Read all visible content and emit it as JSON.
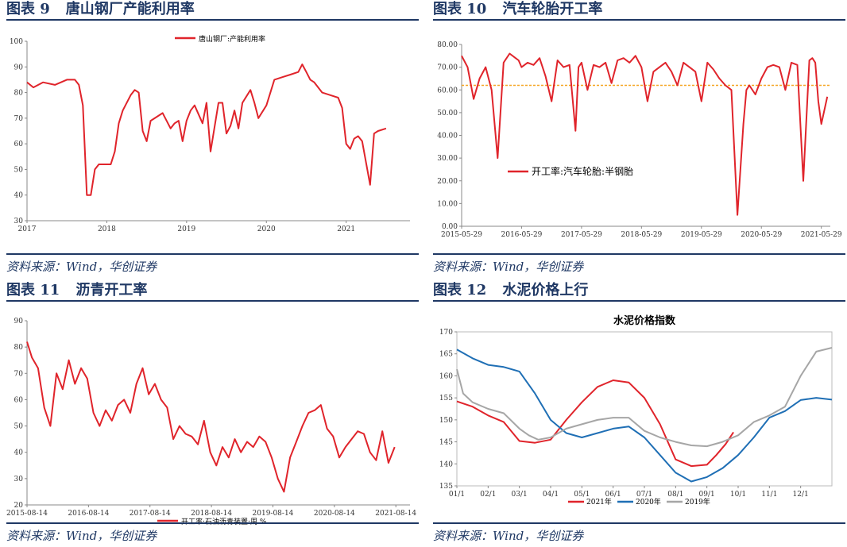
{
  "panels": [
    {
      "fig": "图表 9",
      "title": "唐山钢厂产能利用率",
      "source": "资料来源：Wind，华创证券"
    },
    {
      "fig": "图表 10",
      "title": "汽车轮胎开工率",
      "source": "资料来源：Wind，华创证券"
    },
    {
      "fig": "图表 11",
      "title": "沥青开工率",
      "source": "资料来源：Wind，华创证券"
    },
    {
      "fig": "图表 12",
      "title": "水泥价格上行",
      "source": "资料来源：Wind，华创证券"
    }
  ],
  "chart_data": [
    {
      "type": "line",
      "title": "",
      "ylim": [
        30,
        100
      ],
      "yticks": [
        "30",
        "40",
        "50",
        "60",
        "70",
        "80",
        "90",
        "100"
      ],
      "xticks": [
        "2017",
        "2018",
        "2019",
        "2020",
        "2021"
      ],
      "legend": "top-right",
      "grid": false,
      "color": "#e0242b",
      "series": [
        {
          "name": "唐山钢厂:产能利用率",
          "x": [
            2017.0,
            2017.08,
            2017.2,
            2017.35,
            2017.5,
            2017.6,
            2017.65,
            2017.7,
            2017.75,
            2017.8,
            2017.85,
            2017.9,
            2017.95,
            2018.0,
            2018.05,
            2018.1,
            2018.15,
            2018.2,
            2018.3,
            2018.35,
            2018.4,
            2018.45,
            2018.5,
            2018.55,
            2018.6,
            2018.7,
            2018.8,
            2018.85,
            2018.9,
            2018.95,
            2019.0,
            2019.05,
            2019.1,
            2019.2,
            2019.25,
            2019.3,
            2019.4,
            2019.45,
            2019.5,
            2019.55,
            2019.6,
            2019.65,
            2019.7,
            2019.8,
            2019.85,
            2019.9,
            2020.0,
            2020.1,
            2020.2,
            2020.3,
            2020.4,
            2020.45,
            2020.5,
            2020.55,
            2020.6,
            2020.7,
            2020.8,
            2020.9,
            2020.95,
            2021.0,
            2021.05,
            2021.1,
            2021.15,
            2021.2,
            2021.3,
            2021.35,
            2021.4,
            2021.5
          ],
          "y": [
            84,
            82,
            84,
            83,
            85,
            85,
            83,
            75,
            40,
            40,
            50,
            52,
            52,
            52,
            52,
            57,
            68,
            73,
            79,
            81,
            80,
            65,
            61,
            69,
            70,
            72,
            66,
            68,
            69,
            61,
            69,
            73,
            75,
            68,
            76,
            57,
            76,
            76,
            64,
            67,
            73,
            66,
            76,
            81,
            76,
            70,
            75,
            85,
            86,
            87,
            88,
            91,
            88,
            85,
            84,
            80,
            79,
            78,
            74,
            60,
            58,
            62,
            63,
            61,
            44,
            64,
            65,
            66
          ]
        }
      ]
    },
    {
      "type": "line",
      "title": "",
      "ylim": [
        0,
        80
      ],
      "yticks": [
        "0.00",
        "10.00",
        "20.00",
        "30.00",
        "40.00",
        "50.00",
        "60.00",
        "70.00",
        "80.00"
      ],
      "xticks": [
        "2015-05-29",
        "2016-05-29",
        "2017-05-29",
        "2018-05-29",
        "2019-05-29",
        "2020-05-29",
        "2021-05-29"
      ],
      "legend": "bottom-left",
      "grid": false,
      "color": "#e0242b",
      "refline": 62,
      "series": [
        {
          "name": "开工率:汽车轮胎:半钢胎",
          "x": [
            2015.4,
            2015.5,
            2015.6,
            2015.7,
            2015.8,
            2015.9,
            2016.0,
            2016.1,
            2016.2,
            2016.3,
            2016.35,
            2016.4,
            2016.5,
            2016.6,
            2016.7,
            2016.8,
            2016.9,
            2017.0,
            2017.1,
            2017.2,
            2017.3,
            2017.35,
            2017.4,
            2017.5,
            2017.6,
            2017.7,
            2017.8,
            2017.9,
            2018.0,
            2018.1,
            2018.2,
            2018.3,
            2018.4,
            2018.5,
            2018.6,
            2018.7,
            2018.8,
            2018.9,
            2019.0,
            2019.1,
            2019.2,
            2019.3,
            2019.4,
            2019.5,
            2019.6,
            2019.7,
            2019.8,
            2019.9,
            2020.0,
            2020.1,
            2020.15,
            2020.2,
            2020.3,
            2020.4,
            2020.5,
            2020.6,
            2020.7,
            2020.8,
            2020.9,
            2021.0,
            2021.1,
            2021.2,
            2021.25,
            2021.3,
            2021.35,
            2021.4,
            2021.5
          ],
          "y": [
            75,
            70,
            56,
            65,
            70,
            60,
            30,
            72,
            76,
            74,
            73,
            70,
            72,
            71,
            74,
            66,
            55,
            73,
            70,
            71,
            42,
            70,
            72,
            60,
            71,
            70,
            72,
            63,
            73,
            74,
            72,
            75,
            70,
            55,
            68,
            70,
            72,
            68,
            62,
            72,
            70,
            68,
            55,
            72,
            69,
            65,
            62,
            60,
            5,
            45,
            60,
            62,
            58,
            65,
            70,
            71,
            70,
            60,
            72,
            71,
            20,
            73,
            74,
            72,
            55,
            45,
            57
          ]
        }
      ]
    },
    {
      "type": "line",
      "title": "",
      "ylim": [
        20,
        90
      ],
      "yticks": [
        "20",
        "30",
        "40",
        "50",
        "60",
        "70",
        "80",
        "90"
      ],
      "xticks": [
        "2015-08-14",
        "2016-08-14",
        "2017-08-14",
        "2018-08-14",
        "2019-08-14",
        "2020-08-14",
        "2021-08-14"
      ],
      "legend": "bottom",
      "grid": false,
      "color": "#e0242b",
      "series": [
        {
          "name": "开工率:石油沥青装置:周 %",
          "x": [
            2015.62,
            2015.7,
            2015.8,
            2015.9,
            2016.0,
            2016.1,
            2016.2,
            2016.3,
            2016.4,
            2016.5,
            2016.6,
            2016.7,
            2016.8,
            2016.9,
            2017.0,
            2017.1,
            2017.2,
            2017.3,
            2017.4,
            2017.5,
            2017.6,
            2017.7,
            2017.8,
            2017.9,
            2018.0,
            2018.1,
            2018.2,
            2018.3,
            2018.4,
            2018.5,
            2018.6,
            2018.7,
            2018.8,
            2018.9,
            2019.0,
            2019.1,
            2019.2,
            2019.3,
            2019.4,
            2019.5,
            2019.6,
            2019.7,
            2019.8,
            2019.9,
            2020.0,
            2020.1,
            2020.2,
            2020.3,
            2020.4,
            2020.5,
            2020.6,
            2020.7,
            2020.8,
            2020.9,
            2021.0,
            2021.1,
            2021.2,
            2021.3,
            2021.4,
            2021.5,
            2021.6
          ],
          "y": [
            82,
            76,
            72,
            57,
            50,
            70,
            64,
            75,
            66,
            72,
            68,
            55,
            50,
            56,
            52,
            58,
            60,
            55,
            66,
            72,
            62,
            66,
            60,
            57,
            45,
            50,
            47,
            46,
            43,
            52,
            40,
            35,
            42,
            38,
            45,
            40,
            44,
            42,
            46,
            44,
            38,
            30,
            25,
            38,
            44,
            50,
            55,
            56,
            58,
            49,
            46,
            38,
            42,
            45,
            48,
            47,
            40,
            37,
            48,
            36,
            42
          ]
        }
      ]
    },
    {
      "type": "line",
      "title": "水泥价格指数",
      "ylim": [
        135,
        170
      ],
      "yticks": [
        "135",
        "140",
        "145",
        "150",
        "155",
        "160",
        "165",
        "170"
      ],
      "xticks": [
        "01/1",
        "02/1",
        "03/1",
        "04/1",
        "05/1",
        "06/1",
        "07/1",
        "08/1",
        "09/1",
        "10/1",
        "11/1",
        "12/1"
      ],
      "legend": "bottom",
      "grid": false,
      "series": [
        {
          "name": "2021年",
          "color": "#e0242b",
          "x": [
            0,
            0.5,
            1,
            1.5,
            2,
            2.5,
            3,
            3.5,
            4,
            4.5,
            5,
            5.5,
            6,
            6.5,
            7,
            7.5,
            8,
            8.3,
            8.6,
            8.85
          ],
          "y": [
            154.2,
            153,
            151,
            149.5,
            145.2,
            144.8,
            145.5,
            150,
            154,
            157.5,
            159,
            158.5,
            155,
            149,
            141,
            139.5,
            139.8,
            142,
            144.5,
            147.2
          ]
        },
        {
          "name": "2020年",
          "color": "#1f6fb5",
          "x": [
            0,
            0.5,
            1,
            1.5,
            2,
            2.5,
            3,
            3.5,
            4,
            4.5,
            5,
            5.5,
            6,
            6.5,
            7,
            7.5,
            8,
            8.5,
            9,
            9.5,
            10,
            10.5,
            11,
            11.5,
            12
          ],
          "y": [
            166,
            164,
            162.5,
            162,
            161,
            156,
            150,
            147,
            146,
            147,
            148,
            148.5,
            146,
            142,
            138,
            136,
            137,
            139,
            142,
            146,
            150.5,
            152,
            154.5,
            155,
            154.6
          ]
        },
        {
          "name": "2019年",
          "color": "#a6a6a6",
          "x": [
            0,
            0.2,
            0.5,
            1,
            1.5,
            2,
            2.3,
            2.6,
            3,
            3.5,
            4,
            4.5,
            5,
            5.5,
            6,
            6.5,
            7,
            7.5,
            8,
            8.5,
            9,
            9.5,
            10,
            10.5,
            11,
            11.5,
            12
          ],
          "y": [
            161.5,
            156,
            154,
            152.5,
            151.5,
            148,
            146.5,
            145.5,
            146,
            148,
            149,
            150,
            150.5,
            150.5,
            147.5,
            146,
            145,
            144.2,
            144,
            145,
            146.5,
            149.5,
            151,
            153,
            160,
            165.5,
            166.4
          ]
        }
      ]
    }
  ]
}
